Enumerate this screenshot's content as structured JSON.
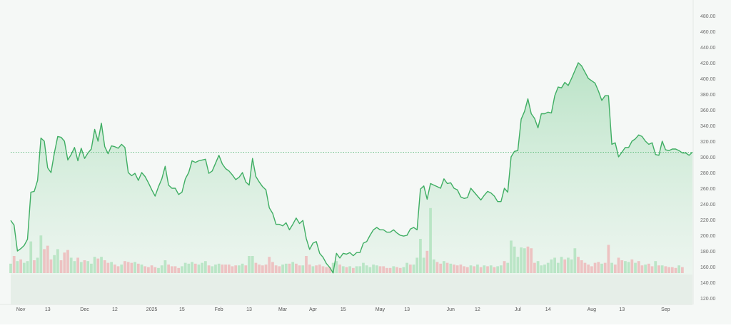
{
  "chart_data": {
    "type": "area",
    "ylim": [
      110,
      490
    ],
    "y_ticks": [
      "480.00",
      "460.00",
      "440.00",
      "420.00",
      "400.00",
      "380.00",
      "360.00",
      "340.00",
      "320.00",
      "300.00",
      "280.00",
      "260.00",
      "240.00",
      "220.00",
      "200.00",
      "180.00",
      "160.00",
      "140.00",
      "120.00"
    ],
    "x_ticks": [
      {
        "label": "Nov",
        "t": 3
      },
      {
        "label": "13",
        "t": 11
      },
      {
        "label": "Dec",
        "t": 22
      },
      {
        "label": "12",
        "t": 31
      },
      {
        "label": "2025",
        "t": 42
      },
      {
        "label": "15",
        "t": 51
      },
      {
        "label": "Feb",
        "t": 62
      },
      {
        "label": "13",
        "t": 71
      },
      {
        "label": "Mar",
        "t": 81
      },
      {
        "label": "Apr",
        "t": 90
      },
      {
        "label": "15",
        "t": 99
      },
      {
        "label": "May",
        "t": 110
      },
      {
        "label": "13",
        "t": 118
      },
      {
        "label": "Jun",
        "t": 131
      },
      {
        "label": "12",
        "t": 139
      },
      {
        "label": "Jul",
        "t": 151
      },
      {
        "label": "14",
        "t": 160
      },
      {
        "label": "Aug",
        "t": 173
      },
      {
        "label": "13",
        "t": 182
      },
      {
        "label": "Sep",
        "t": 195
      }
    ],
    "reference_line": 306,
    "line_color": "#3fae63",
    "fill_color": "#c5e8cf",
    "volume_up_color": "#b5e3c1",
    "volume_down_color": "#edbcbc",
    "price": [
      219,
      213,
      180,
      183,
      187,
      195,
      255,
      256,
      270,
      324,
      320,
      286,
      280,
      305,
      326,
      325,
      320,
      296,
      303,
      312,
      295,
      311,
      298,
      305,
      310,
      335,
      320,
      343,
      313,
      304,
      314,
      313,
      311,
      316,
      312,
      280,
      276,
      279,
      270,
      280,
      275,
      267,
      258,
      250,
      262,
      272,
      288,
      264,
      260,
      260,
      252,
      255,
      272,
      280,
      295,
      293,
      295,
      296,
      297,
      279,
      282,
      292,
      302,
      291,
      285,
      282,
      277,
      271,
      274,
      280,
      268,
      264,
      298,
      275,
      268,
      262,
      258,
      235,
      228,
      214,
      214,
      212,
      216,
      207,
      214,
      222,
      215,
      219,
      196,
      182,
      190,
      192,
      177,
      172,
      164,
      159,
      152,
      177,
      171,
      177,
      176,
      178,
      174,
      178,
      178,
      190,
      192,
      200,
      207,
      210,
      207,
      207,
      204,
      204,
      207,
      203,
      200,
      199,
      200,
      208,
      210,
      207,
      259,
      263,
      246,
      266,
      264,
      262,
      260,
      272,
      266,
      267,
      260,
      258,
      249,
      247,
      248,
      260,
      255,
      250,
      245,
      251,
      256,
      254,
      250,
      243,
      243,
      260,
      255,
      300,
      307,
      308,
      348,
      358,
      374,
      355,
      349,
      337,
      355,
      355,
      357,
      356,
      378,
      389,
      388,
      395,
      391,
      400,
      410,
      420,
      416,
      408,
      400,
      397,
      394,
      384,
      372,
      378,
      378,
      316,
      318,
      300,
      306,
      312,
      312,
      320,
      323,
      328,
      326,
      320,
      316,
      318,
      303,
      302,
      320,
      309,
      308,
      310,
      310,
      308,
      305,
      305,
      302,
      306
    ],
    "volume": [
      {
        "v": 11,
        "u": 1
      },
      {
        "v": 20,
        "u": 0
      },
      {
        "v": 14,
        "u": 1
      },
      {
        "v": 16,
        "u": 0
      },
      {
        "v": 12,
        "u": 1
      },
      {
        "v": 14,
        "u": 1
      },
      {
        "v": 37,
        "u": 1
      },
      {
        "v": 15,
        "u": 0
      },
      {
        "v": 18,
        "u": 1
      },
      {
        "v": 44,
        "u": 1
      },
      {
        "v": 28,
        "u": 0
      },
      {
        "v": 32,
        "u": 0
      },
      {
        "v": 16,
        "u": 0
      },
      {
        "v": 21,
        "u": 1
      },
      {
        "v": 28,
        "u": 1
      },
      {
        "v": 15,
        "u": 0
      },
      {
        "v": 24,
        "u": 0
      },
      {
        "v": 27,
        "u": 0
      },
      {
        "v": 18,
        "u": 1
      },
      {
        "v": 14,
        "u": 1
      },
      {
        "v": 18,
        "u": 0
      },
      {
        "v": 13,
        "u": 1
      },
      {
        "v": 15,
        "u": 0
      },
      {
        "v": 14,
        "u": 1
      },
      {
        "v": 11,
        "u": 1
      },
      {
        "v": 19,
        "u": 1
      },
      {
        "v": 17,
        "u": 0
      },
      {
        "v": 19,
        "u": 1
      },
      {
        "v": 15,
        "u": 0
      },
      {
        "v": 12,
        "u": 0
      },
      {
        "v": 13,
        "u": 1
      },
      {
        "v": 10,
        "u": 0
      },
      {
        "v": 8,
        "u": 0
      },
      {
        "v": 10,
        "u": 1
      },
      {
        "v": 14,
        "u": 0
      },
      {
        "v": 13,
        "u": 0
      },
      {
        "v": 12,
        "u": 0
      },
      {
        "v": 13,
        "u": 1
      },
      {
        "v": 11,
        "u": 0
      },
      {
        "v": 10,
        "u": 1
      },
      {
        "v": 8,
        "u": 0
      },
      {
        "v": 7,
        "u": 0
      },
      {
        "v": 9,
        "u": 0
      },
      {
        "v": 7,
        "u": 0
      },
      {
        "v": 6,
        "u": 1
      },
      {
        "v": 9,
        "u": 1
      },
      {
        "v": 15,
        "u": 1
      },
      {
        "v": 10,
        "u": 0
      },
      {
        "v": 8,
        "u": 0
      },
      {
        "v": 8,
        "u": 0
      },
      {
        "v": 6,
        "u": 0
      },
      {
        "v": 8,
        "u": 1
      },
      {
        "v": 12,
        "u": 1
      },
      {
        "v": 11,
        "u": 1
      },
      {
        "v": 13,
        "u": 1
      },
      {
        "v": 11,
        "u": 0
      },
      {
        "v": 10,
        "u": 1
      },
      {
        "v": 12,
        "u": 1
      },
      {
        "v": 14,
        "u": 1
      },
      {
        "v": 9,
        "u": 0
      },
      {
        "v": 8,
        "u": 1
      },
      {
        "v": 10,
        "u": 1
      },
      {
        "v": 11,
        "u": 1
      },
      {
        "v": 10,
        "u": 0
      },
      {
        "v": 10,
        "u": 0
      },
      {
        "v": 10,
        "u": 0
      },
      {
        "v": 8,
        "u": 0
      },
      {
        "v": 9,
        "u": 0
      },
      {
        "v": 9,
        "u": 1
      },
      {
        "v": 11,
        "u": 1
      },
      {
        "v": 9,
        "u": 0
      },
      {
        "v": 20,
        "u": 1
      },
      {
        "v": 20,
        "u": 1
      },
      {
        "v": 12,
        "u": 0
      },
      {
        "v": 10,
        "u": 0
      },
      {
        "v": 9,
        "u": 0
      },
      {
        "v": 10,
        "u": 0
      },
      {
        "v": 19,
        "u": 0
      },
      {
        "v": 13,
        "u": 0
      },
      {
        "v": 9,
        "u": 0
      },
      {
        "v": 8,
        "u": 0
      },
      {
        "v": 10,
        "u": 1
      },
      {
        "v": 11,
        "u": 1
      },
      {
        "v": 11,
        "u": 0
      },
      {
        "v": 13,
        "u": 1
      },
      {
        "v": 11,
        "u": 0
      },
      {
        "v": 9,
        "u": 0
      },
      {
        "v": 9,
        "u": 1
      },
      {
        "v": 20,
        "u": 0
      },
      {
        "v": 10,
        "u": 0
      },
      {
        "v": 8,
        "u": 1
      },
      {
        "v": 9,
        "u": 0
      },
      {
        "v": 10,
        "u": 0
      },
      {
        "v": 8,
        "u": 0
      },
      {
        "v": 7,
        "u": 0
      },
      {
        "v": 7,
        "u": 0
      },
      {
        "v": 12,
        "u": 1
      },
      {
        "v": 14,
        "u": 1
      },
      {
        "v": 10,
        "u": 0
      },
      {
        "v": 8,
        "u": 1
      },
      {
        "v": 7,
        "u": 0
      },
      {
        "v": 8,
        "u": 1
      },
      {
        "v": 6,
        "u": 0
      },
      {
        "v": 8,
        "u": 1
      },
      {
        "v": 8,
        "u": 1
      },
      {
        "v": 12,
        "u": 1
      },
      {
        "v": 9,
        "u": 1
      },
      {
        "v": 7,
        "u": 1
      },
      {
        "v": 10,
        "u": 1
      },
      {
        "v": 9,
        "u": 1
      },
      {
        "v": 8,
        "u": 0
      },
      {
        "v": 8,
        "u": 0
      },
      {
        "v": 6,
        "u": 0
      },
      {
        "v": 6,
        "u": 0
      },
      {
        "v": 8,
        "u": 1
      },
      {
        "v": 7,
        "u": 0
      },
      {
        "v": 6,
        "u": 0
      },
      {
        "v": 7,
        "u": 1
      },
      {
        "v": 12,
        "u": 1
      },
      {
        "v": 10,
        "u": 0
      },
      {
        "v": 10,
        "u": 1
      },
      {
        "v": 18,
        "u": 1
      },
      {
        "v": 40,
        "u": 1
      },
      {
        "v": 18,
        "u": 1
      },
      {
        "v": 26,
        "u": 0
      },
      {
        "v": 76,
        "u": 1
      },
      {
        "v": 16,
        "u": 1
      },
      {
        "v": 13,
        "u": 0
      },
      {
        "v": 11,
        "u": 0
      },
      {
        "v": 14,
        "u": 1
      },
      {
        "v": 12,
        "u": 0
      },
      {
        "v": 11,
        "u": 1
      },
      {
        "v": 10,
        "u": 0
      },
      {
        "v": 9,
        "u": 0
      },
      {
        "v": 10,
        "u": 0
      },
      {
        "v": 8,
        "u": 0
      },
      {
        "v": 7,
        "u": 0
      },
      {
        "v": 9,
        "u": 1
      },
      {
        "v": 8,
        "u": 0
      },
      {
        "v": 10,
        "u": 1
      },
      {
        "v": 7,
        "u": 0
      },
      {
        "v": 9,
        "u": 1
      },
      {
        "v": 8,
        "u": 0
      },
      {
        "v": 9,
        "u": 1
      },
      {
        "v": 7,
        "u": 0
      },
      {
        "v": 8,
        "u": 1
      },
      {
        "v": 9,
        "u": 1
      },
      {
        "v": 14,
        "u": 0
      },
      {
        "v": 12,
        "u": 1
      },
      {
        "v": 38,
        "u": 1
      },
      {
        "v": 31,
        "u": 1
      },
      {
        "v": 19,
        "u": 1
      },
      {
        "v": 30,
        "u": 1
      },
      {
        "v": 29,
        "u": 1
      },
      {
        "v": 31,
        "u": 0
      },
      {
        "v": 29,
        "u": 0
      },
      {
        "v": 12,
        "u": 0
      },
      {
        "v": 14,
        "u": 1
      },
      {
        "v": 9,
        "u": 1
      },
      {
        "v": 10,
        "u": 1
      },
      {
        "v": 12,
        "u": 1
      },
      {
        "v": 16,
        "u": 1
      },
      {
        "v": 18,
        "u": 1
      },
      {
        "v": 12,
        "u": 1
      },
      {
        "v": 19,
        "u": 1
      },
      {
        "v": 16,
        "u": 0
      },
      {
        "v": 18,
        "u": 1
      },
      {
        "v": 16,
        "u": 1
      },
      {
        "v": 29,
        "u": 1
      },
      {
        "v": 19,
        "u": 0
      },
      {
        "v": 15,
        "u": 0
      },
      {
        "v": 12,
        "u": 0
      },
      {
        "v": 10,
        "u": 0
      },
      {
        "v": 8,
        "u": 0
      },
      {
        "v": 12,
        "u": 0
      },
      {
        "v": 13,
        "u": 0
      },
      {
        "v": 11,
        "u": 1
      },
      {
        "v": 12,
        "u": 0
      },
      {
        "v": 33,
        "u": 0
      },
      {
        "v": 12,
        "u": 1
      },
      {
        "v": 10,
        "u": 0
      },
      {
        "v": 18,
        "u": 0
      },
      {
        "v": 15,
        "u": 0
      },
      {
        "v": 14,
        "u": 1
      },
      {
        "v": 13,
        "u": 1
      },
      {
        "v": 16,
        "u": 0
      },
      {
        "v": 12,
        "u": 1
      },
      {
        "v": 14,
        "u": 0
      },
      {
        "v": 9,
        "u": 0
      },
      {
        "v": 10,
        "u": 1
      },
      {
        "v": 11,
        "u": 0
      },
      {
        "v": 8,
        "u": 0
      },
      {
        "v": 14,
        "u": 1
      },
      {
        "v": 9,
        "u": 0
      },
      {
        "v": 9,
        "u": 1
      },
      {
        "v": 8,
        "u": 0
      },
      {
        "v": 7,
        "u": 0
      },
      {
        "v": 7,
        "u": 0
      },
      {
        "v": 6,
        "u": 0
      },
      {
        "v": 9,
        "u": 1
      },
      {
        "v": 7,
        "u": 0
      }
    ]
  }
}
